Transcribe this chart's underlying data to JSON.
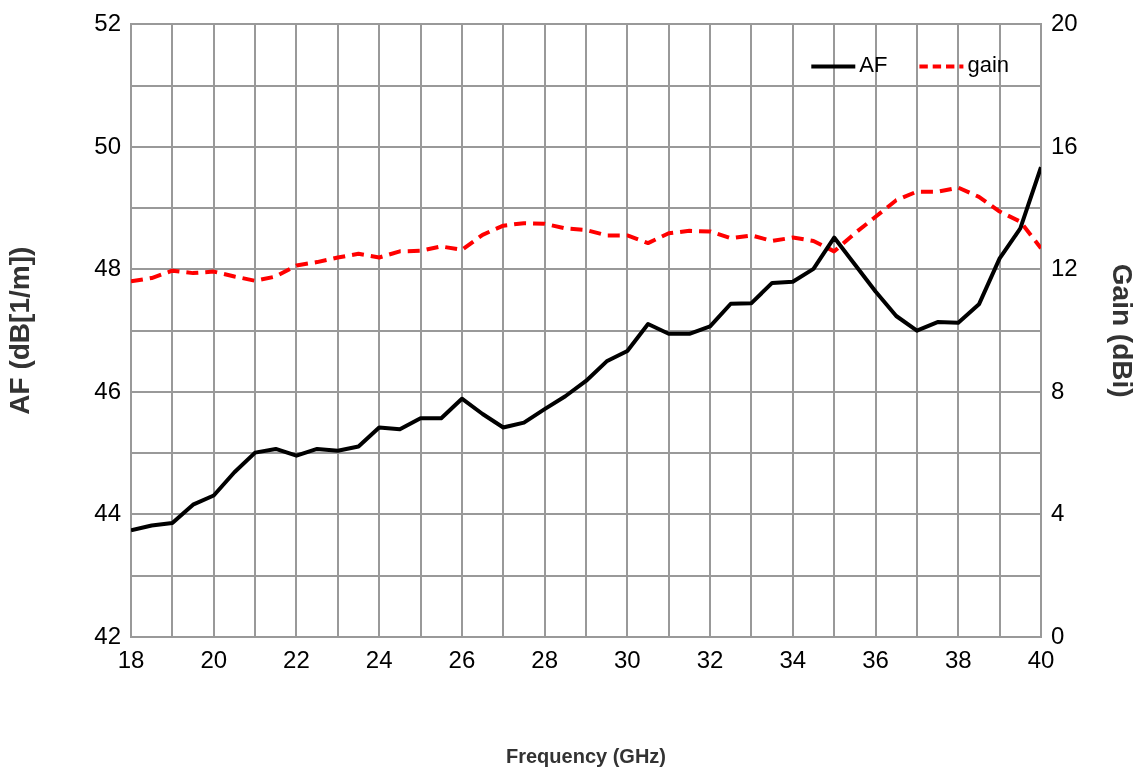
{
  "chart_data": {
    "type": "line",
    "xlabel": "Frequency (GHz)",
    "ylabel": "AF (dB[1/m])",
    "y2label": "Gain (dBi)",
    "x": [
      18,
      18.5,
      19,
      19.5,
      20,
      20.5,
      21,
      21.5,
      22,
      22.5,
      23,
      23.5,
      24,
      24.5,
      25,
      25.5,
      26,
      26.5,
      27,
      27.5,
      28,
      28.5,
      29,
      29.5,
      30,
      30.5,
      31,
      31.5,
      32,
      32.5,
      33,
      33.5,
      34,
      34.5,
      35,
      35.5,
      36,
      36.5,
      37,
      37.5,
      38,
      38.5,
      39,
      39.5,
      40
    ],
    "series": [
      {
        "name": "AF",
        "color": "#000000",
        "line_style": "solid",
        "values": [
          43.74,
          43.82,
          43.86,
          44.16,
          44.31,
          44.69,
          45.01,
          45.07,
          44.96,
          45.07,
          45.04,
          45.11,
          45.42,
          45.39,
          45.57,
          45.57,
          45.89,
          45.64,
          45.42,
          45.5,
          45.72,
          45.93,
          46.18,
          46.5,
          46.67,
          47.11,
          46.95,
          46.95,
          47.07,
          47.44,
          47.45,
          47.78,
          47.8,
          48.01,
          48.52,
          48.08,
          47.64,
          47.24,
          47.0,
          47.14,
          47.13,
          47.43,
          48.18,
          48.67,
          49.67
        ]
      },
      {
        "name": "gain",
        "color": "#ff0000",
        "line_style": "dashed",
        "axis": "y2",
        "values": [
          11.61,
          11.72,
          11.96,
          11.88,
          11.93,
          11.77,
          11.63,
          11.77,
          12.13,
          12.24,
          12.39,
          12.51,
          12.39,
          12.59,
          12.61,
          12.75,
          12.64,
          13.13,
          13.43,
          13.51,
          13.49,
          13.34,
          13.29,
          13.11,
          13.11,
          12.86,
          13.18,
          13.26,
          13.24,
          13.02,
          13.11,
          12.93,
          13.04,
          12.93,
          12.59,
          13.18,
          13.72,
          14.26,
          14.54,
          14.54,
          14.67,
          14.37,
          13.89,
          13.56,
          12.69
        ]
      }
    ],
    "xlim": [
      18,
      40
    ],
    "xticks": [
      18,
      {
        "value": 19,
        "label": null
      },
      20,
      {
        "value": 21,
        "label": null
      },
      22,
      {
        "value": 23,
        "label": null
      },
      24,
      {
        "value": 25,
        "label": null
      },
      26,
      {
        "value": 27,
        "label": null
      },
      28,
      {
        "value": 29,
        "label": null
      },
      30,
      {
        "value": 31,
        "label": null
      },
      32,
      {
        "value": 33,
        "label": null
      },
      34,
      {
        "value": 35,
        "label": null
      },
      36,
      {
        "value": 37,
        "label": null
      },
      38,
      {
        "value": 39,
        "label": null
      },
      40
    ],
    "ylim": [
      42,
      52
    ],
    "yticks": [
      42,
      {
        "value": 43,
        "label": null
      },
      44,
      {
        "value": 45,
        "label": null
      },
      46,
      {
        "value": 47,
        "label": null
      },
      48,
      {
        "value": 49,
        "label": null
      },
      50,
      {
        "value": 51,
        "label": null
      },
      52
    ],
    "y2lim": [
      0,
      20
    ],
    "y2ticks": [
      0,
      4,
      8,
      12,
      16,
      20
    ],
    "grid": true,
    "legend": "top right",
    "marker": "none"
  }
}
